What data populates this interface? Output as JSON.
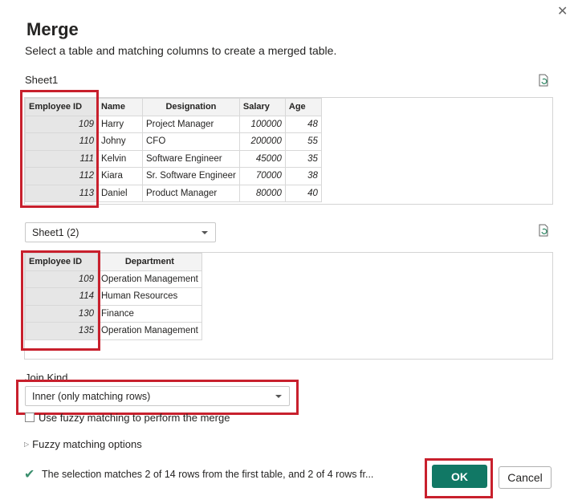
{
  "dialog": {
    "title": "Merge",
    "subtitle": "Select a table and matching columns to create a merged table."
  },
  "table1": {
    "name": "Sheet1",
    "columns": [
      "Employee ID",
      "Name",
      "Designation",
      "Salary",
      "Age"
    ],
    "rows": [
      [
        "109",
        "Harry",
        "Project Manager",
        "100000",
        "48"
      ],
      [
        "110",
        "Johny",
        "CFO",
        "200000",
        "55"
      ],
      [
        "111",
        "Kelvin",
        "Software Engineer",
        "45000",
        "35"
      ],
      [
        "112",
        "Kiara",
        "Sr. Software Engineer",
        "70000",
        "38"
      ],
      [
        "113",
        "Daniel",
        "Product Manager",
        "80000",
        "40"
      ]
    ]
  },
  "table2": {
    "selected": "Sheet1 (2)",
    "columns": [
      "Employee ID",
      "Department"
    ],
    "rows": [
      [
        "109",
        "Operation Management"
      ],
      [
        "114",
        "Human Resources"
      ],
      [
        "130",
        "Finance"
      ],
      [
        "135",
        "Operation Management"
      ]
    ]
  },
  "join": {
    "label": "Join Kind",
    "value": "Inner (only matching rows)"
  },
  "fuzzy": {
    "checkbox_label": "Use fuzzy matching to perform the merge",
    "checked": false,
    "options_label": "Fuzzy matching options"
  },
  "status": "The selection matches 2 of 14 rows from the first table, and 2 of 4 rows fr...",
  "buttons": {
    "ok": "OK",
    "cancel": "Cancel"
  },
  "colors": {
    "accent": "#117865",
    "highlight": "#c8202d",
    "check": "#3b8f6e"
  }
}
